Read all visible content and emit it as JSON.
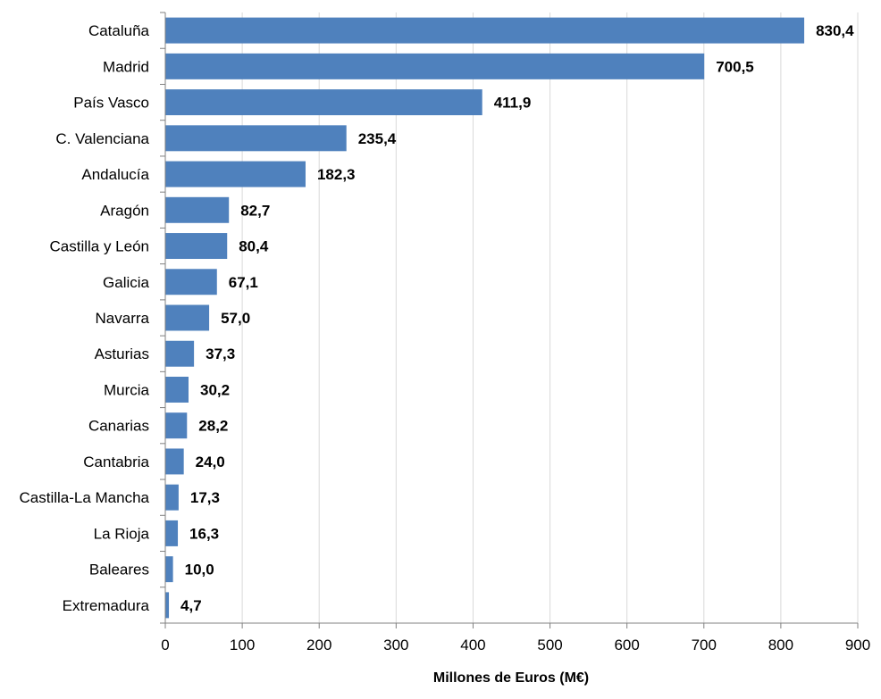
{
  "chart_data": {
    "type": "bar",
    "orientation": "horizontal",
    "categories": [
      "Cataluña",
      "Madrid",
      "País Vasco",
      "C. Valenciana",
      "Andalucía",
      "Aragón",
      "Castilla y León",
      "Galicia",
      "Navarra",
      "Asturias",
      "Murcia",
      "Canarias",
      "Cantabria",
      "Castilla-La Mancha",
      "La Rioja",
      "Baleares",
      "Extremadura"
    ],
    "values": [
      830.4,
      700.5,
      411.9,
      235.4,
      182.3,
      82.7,
      80.4,
      67.1,
      57.0,
      37.3,
      30.2,
      28.2,
      24.0,
      17.3,
      16.3,
      10.0,
      4.7
    ],
    "value_labels": [
      "830,4",
      "700,5",
      "411,9",
      "235,4",
      "182,3",
      "82,7",
      "80,4",
      "67,1",
      "57,0",
      "37,3",
      "30,2",
      "28,2",
      "24,0",
      "17,3",
      "16,3",
      "10,0",
      "4,7"
    ],
    "title": "",
    "xlabel": "Millones de Euros (M€)",
    "ylabel": "",
    "xlim": [
      0,
      900
    ],
    "xticks": [
      0,
      100,
      200,
      300,
      400,
      500,
      600,
      700,
      800,
      900
    ],
    "xtick_labels": [
      "0",
      "100",
      "200",
      "300",
      "400",
      "500",
      "600",
      "700",
      "800",
      "900"
    ],
    "grid": "vertical",
    "legend": "none",
    "bar_color": "#4F81BD",
    "grid_color": "#D9D9D9",
    "axis_color": "#808080"
  }
}
